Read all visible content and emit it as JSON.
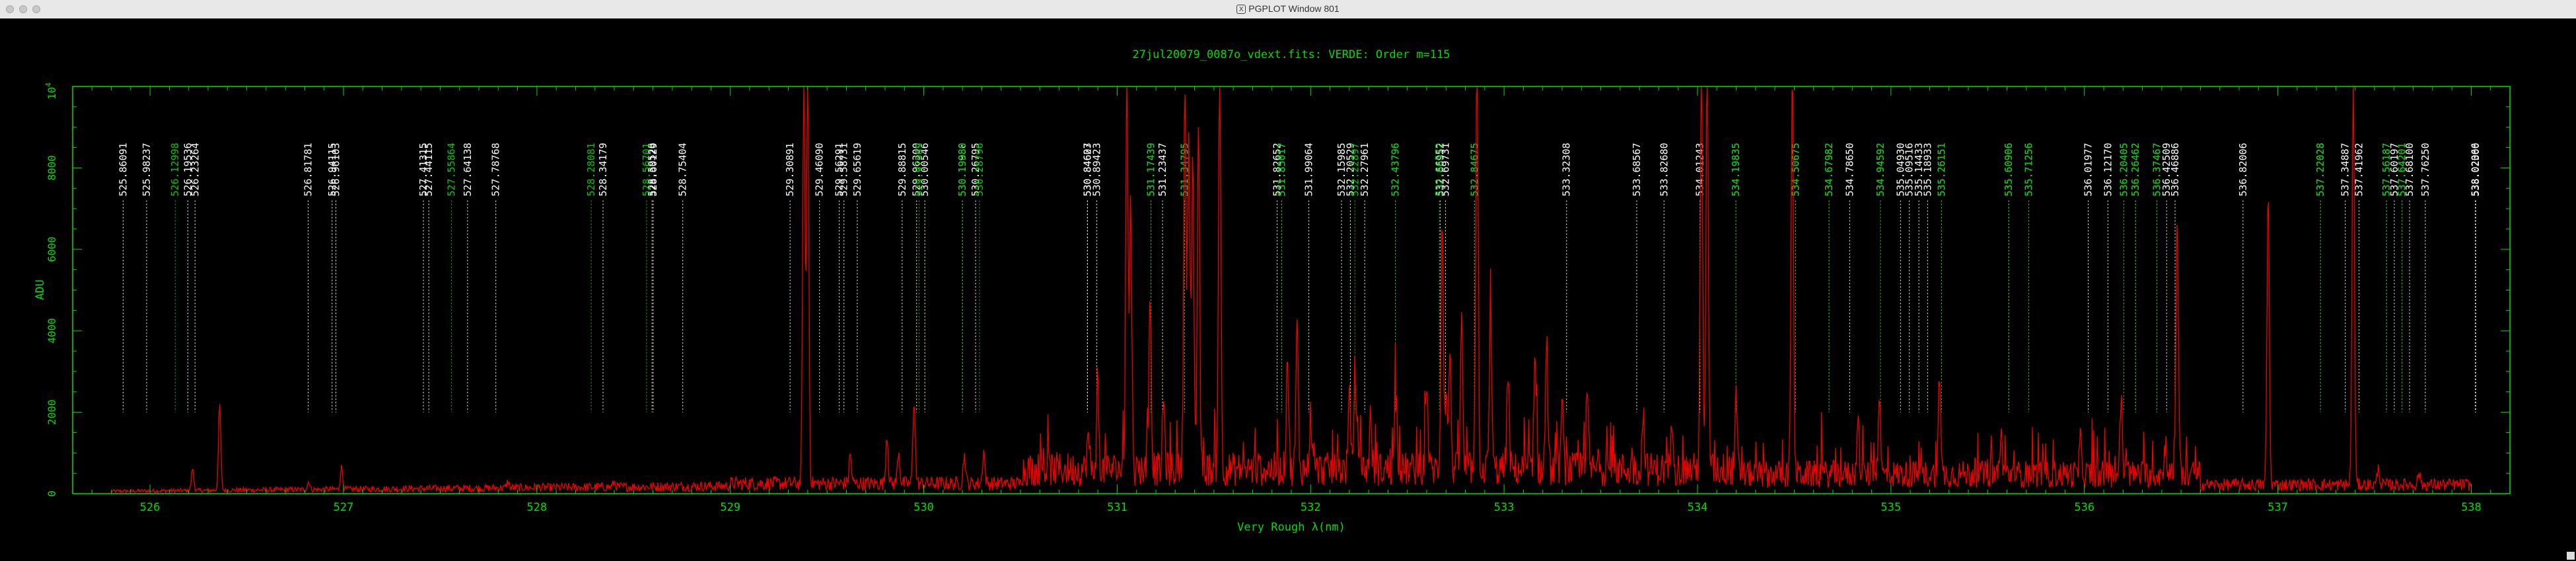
{
  "window": {
    "title": "PGPLOT Window 801",
    "x_glyph": "X"
  },
  "colors": {
    "axes": "#00dd00",
    "spectrum": "#ee0000",
    "white_lines": "#ffffff",
    "green_lines": "#00cc00"
  },
  "chart_data": {
    "type": "line",
    "title": "27jul20079_0087o_vdext.fits: VERDE: Order m=115",
    "xlabel": "Very Rough λ(nm)",
    "ylabel": "ADU",
    "xlim": [
      525.6,
      538.2
    ],
    "ylim": [
      0,
      10000
    ],
    "xticks": [
      526,
      527,
      528,
      529,
      530,
      531,
      532,
      533,
      534,
      535,
      536,
      537,
      538
    ],
    "yticks": [
      0,
      2000,
      4000,
      6000,
      8000
    ],
    "ytick_top_label": "10",
    "ytick_top_exponent": "4",
    "grid": false,
    "series": [
      {
        "peaks": [
          [
            526.36,
            2100
          ],
          [
            526.22,
            550
          ],
          [
            526.82,
            200
          ],
          [
            526.99,
            550
          ],
          [
            527.85,
            150
          ],
          [
            528.4,
            120
          ],
          [
            529.38,
            9950
          ],
          [
            529.4,
            10000
          ],
          [
            529.62,
            700
          ],
          [
            529.81,
            1200
          ],
          [
            529.87,
            800
          ],
          [
            529.95,
            2100
          ],
          [
            530.21,
            700
          ],
          [
            530.31,
            800
          ],
          [
            530.85,
            800
          ],
          [
            530.9,
            1800
          ],
          [
            531.05,
            9900
          ],
          [
            531.07,
            6500
          ],
          [
            531.17,
            4400
          ],
          [
            531.24,
            1700
          ],
          [
            531.35,
            9700
          ],
          [
            531.37,
            8300
          ],
          [
            531.39,
            7500
          ],
          [
            531.42,
            8600
          ],
          [
            531.53,
            10000
          ],
          [
            531.88,
            2800
          ],
          [
            531.93,
            3500
          ],
          [
            532.0,
            1400
          ],
          [
            532.2,
            1700
          ],
          [
            532.23,
            2600
          ],
          [
            532.31,
            1300
          ],
          [
            532.44,
            1800
          ],
          [
            532.6,
            2200
          ],
          [
            532.68,
            6300
          ],
          [
            532.72,
            2800
          ],
          [
            532.7,
            1800
          ],
          [
            532.78,
            3600
          ],
          [
            532.86,
            9900
          ],
          [
            532.93,
            3800
          ],
          [
            533.02,
            2400
          ],
          [
            533.16,
            2600
          ],
          [
            533.22,
            3000
          ],
          [
            533.3,
            1500
          ],
          [
            533.43,
            1800
          ],
          [
            533.72,
            1400
          ],
          [
            533.87,
            1300
          ],
          [
            534.02,
            10000
          ],
          [
            534.05,
            10000
          ],
          [
            534.2,
            1700
          ],
          [
            534.49,
            9900
          ],
          [
            534.83,
            1300
          ],
          [
            534.94,
            2000
          ],
          [
            535.25,
            2600
          ],
          [
            535.57,
            900
          ],
          [
            535.98,
            800
          ],
          [
            536.19,
            1900
          ],
          [
            536.42,
            800
          ],
          [
            536.48,
            6400
          ],
          [
            536.95,
            7200
          ],
          [
            537.39,
            10000
          ],
          [
            537.52,
            400
          ],
          [
            537.73,
            300
          ]
        ]
      }
    ],
    "line_ids_white": [
      "525.86091",
      "525.98237",
      "526.19536",
      "526.23264",
      "526.81781",
      "526.94115",
      "526.96103",
      "527.41315",
      "527.44115",
      "527.64138",
      "527.78768",
      "528.34179",
      "528.59528",
      "528.60129",
      "528.75404",
      "529.30891",
      "529.46090",
      "529.56291",
      "529.58731",
      "529.65619",
      "529.88815",
      "529.96300",
      "530.00546",
      "530.19980",
      "530.26795",
      "530.84603",
      "530.84627",
      "530.89423",
      "531.17439",
      "531.23437",
      "531.34795",
      "531.82652",
      "531.85017",
      "531.99064",
      "532.15985",
      "532.20529",
      "532.27961",
      "532.43796",
      "532.66952",
      "532.69731",
      "532.84675",
      "533.32308",
      "533.68567",
      "533.82680",
      "534.01243",
      "534.19835",
      "534.50675",
      "534.67982",
      "534.78650",
      "534.94592",
      "535.04930",
      "535.09516",
      "535.14433",
      "535.18933",
      "535.26151",
      "535.60906",
      "535.71256",
      "536.01977",
      "536.12170",
      "536.20405",
      "536.26462",
      "536.37467",
      "536.42509",
      "536.46886",
      "536.82006",
      "537.22028",
      "537.34887",
      "537.41962",
      "537.56187",
      "537.60197",
      "537.64201",
      "537.68100",
      "537.76250",
      "538.02066",
      "538.02300"
    ],
    "line_ids_green": [
      "526.12998",
      "527.55864",
      "528.28081",
      "528.56701",
      "529.97569",
      "530.19889",
      "530.28796",
      "531.17439",
      "531.34795",
      "531.85017",
      "532.22897",
      "532.43796",
      "532.66572",
      "532.84675",
      "534.19835",
      "534.50675",
      "534.67982",
      "534.94592",
      "535.26151",
      "535.60906",
      "535.71256",
      "536.20405",
      "536.26462",
      "536.37467",
      "537.22028",
      "537.56187",
      "537.64201"
    ]
  }
}
